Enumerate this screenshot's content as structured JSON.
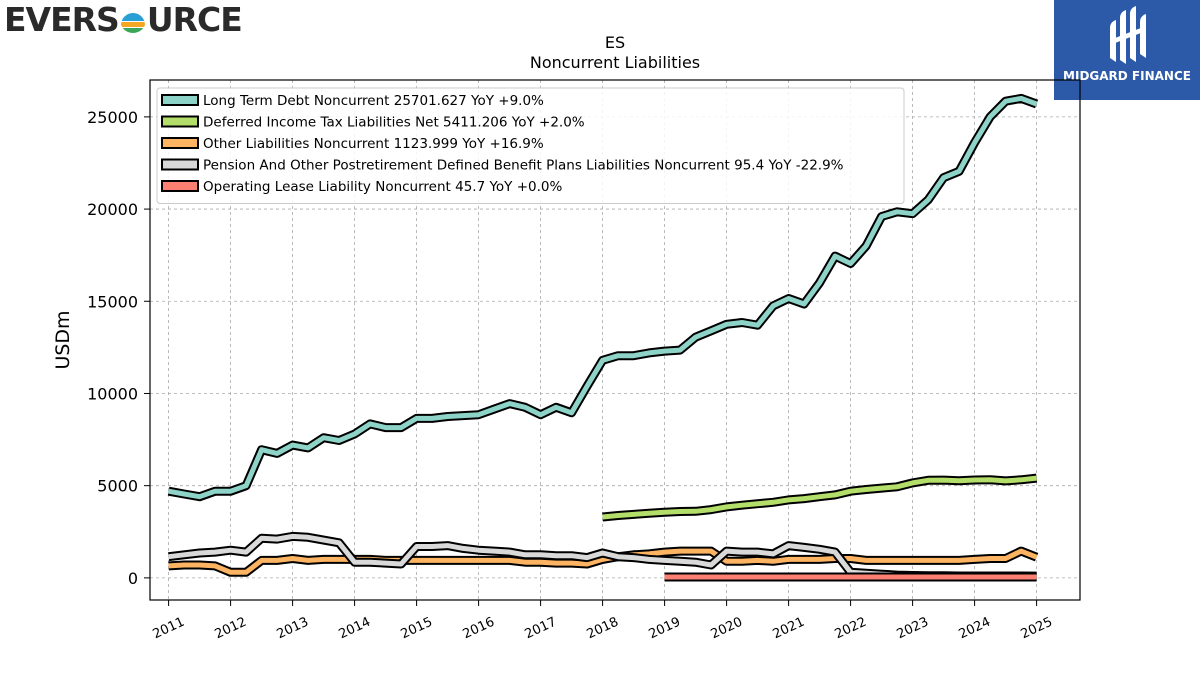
{
  "header": {
    "left_logo_text_a": "EVERS",
    "left_logo_text_b": "URCE",
    "right_logo_name": "MIDGARD FINANCE",
    "logo_colors": {
      "globe_top": "#2a9fd6",
      "globe_mid": "#f5a623",
      "globe_bottom": "#3aa657",
      "brand_blue": "#2c5aa8"
    }
  },
  "chart_data": {
    "type": "line",
    "title": "ES",
    "subtitle": "Noncurrent  Liabilities",
    "ylabel": "USDm",
    "xlabel": "",
    "ylim": [
      -1200,
      27000
    ],
    "xlim": [
      2010.7,
      2025.7
    ],
    "yticks": [
      0,
      5000,
      10000,
      15000,
      20000,
      25000
    ],
    "xticks": [
      2011,
      2012,
      2013,
      2014,
      2015,
      2016,
      2017,
      2018,
      2019,
      2020,
      2021,
      2022,
      2023,
      2024,
      2025
    ],
    "grid": true,
    "legend_position": "upper-left",
    "series": [
      {
        "name": "Long Term Debt Noncurrent  25701.627 YoY +9.0%",
        "color": "#8dd3c7",
        "x": [
          2011.0,
          2011.25,
          2011.5,
          2011.75,
          2012.0,
          2012.25,
          2012.5,
          2012.75,
          2013.0,
          2013.25,
          2013.5,
          2013.75,
          2014.0,
          2014.25,
          2014.5,
          2014.75,
          2015.0,
          2015.25,
          2015.5,
          2015.75,
          2016.0,
          2016.25,
          2016.5,
          2016.75,
          2017.0,
          2017.25,
          2017.5,
          2017.75,
          2018.0,
          2018.25,
          2018.5,
          2018.75,
          2019.0,
          2019.25,
          2019.5,
          2019.75,
          2020.0,
          2020.25,
          2020.5,
          2020.75,
          2021.0,
          2021.25,
          2021.5,
          2021.75,
          2022.0,
          2022.25,
          2022.5,
          2022.75,
          2023.0,
          2023.25,
          2023.5,
          2023.75,
          2024.0,
          2024.25,
          2024.5,
          2024.75,
          2025.0
        ],
        "values": [
          4700,
          4550,
          4400,
          4700,
          4700,
          5000,
          6950,
          6750,
          7200,
          7050,
          7600,
          7450,
          7800,
          8350,
          8150,
          8150,
          8650,
          8650,
          8750,
          8800,
          8850,
          9150,
          9450,
          9250,
          8850,
          9250,
          8950,
          10400,
          11800,
          12050,
          12050,
          12200,
          12300,
          12350,
          13050,
          13400,
          13750,
          13850,
          13700,
          14750,
          15150,
          14850,
          16000,
          17450,
          17050,
          18000,
          19600,
          19850,
          19750,
          20500,
          21700,
          22050,
          23600,
          25000,
          25850,
          26000,
          25700
        ]
      },
      {
        "name": "Deferred Income Tax Liabilities Net  5411.206 YoY +2.0%",
        "color": "#b3de69",
        "x": [
          2018.0,
          2018.25,
          2018.5,
          2018.75,
          2019.0,
          2019.25,
          2019.5,
          2019.75,
          2020.0,
          2020.25,
          2020.5,
          2020.75,
          2021.0,
          2021.25,
          2021.5,
          2021.75,
          2022.0,
          2022.25,
          2022.5,
          2022.75,
          2023.0,
          2023.25,
          2023.5,
          2023.75,
          2024.0,
          2024.25,
          2024.5,
          2024.75,
          2025.0
        ],
        "values": [
          3300,
          3380,
          3440,
          3500,
          3560,
          3600,
          3610,
          3700,
          3850,
          3940,
          4020,
          4100,
          4230,
          4300,
          4400,
          4500,
          4700,
          4790,
          4870,
          4940,
          5150,
          5290,
          5300,
          5270,
          5310,
          5320,
          5260,
          5320,
          5410
        ]
      },
      {
        "name": "Other Liabilities Noncurrent  1123.999 YoY +16.9%",
        "color": "#fdb462",
        "x": [
          2011.0,
          2011.25,
          2011.5,
          2011.75,
          2012.0,
          2012.25,
          2012.5,
          2012.75,
          2013.0,
          2013.25,
          2013.5,
          2013.75,
          2014.0,
          2014.25,
          2014.5,
          2014.75,
          2015.0,
          2015.25,
          2015.5,
          2015.75,
          2016.0,
          2016.25,
          2016.5,
          2016.75,
          2017.0,
          2017.25,
          2017.5,
          2017.75,
          2018.0,
          2018.25,
          2018.5,
          2018.75,
          2019.0,
          2019.25,
          2019.5,
          2019.75,
          2020.0,
          2020.25,
          2020.5,
          2020.75,
          2021.0,
          2021.25,
          2021.5,
          2021.75,
          2022.0,
          2022.25,
          2022.5,
          2022.75,
          2023.0,
          2023.25,
          2023.5,
          2023.75,
          2024.0,
          2024.25,
          2024.5,
          2024.75,
          2025.0
        ],
        "values": [
          650,
          700,
          700,
          650,
          300,
          300,
          950,
          950,
          1050,
          950,
          1000,
          1000,
          1000,
          1000,
          950,
          950,
          950,
          950,
          950,
          950,
          950,
          950,
          950,
          850,
          850,
          800,
          800,
          750,
          1000,
          1150,
          1250,
          1300,
          1400,
          1450,
          1450,
          1450,
          900,
          900,
          950,
          900,
          1000,
          1000,
          1000,
          1050,
          1050,
          950,
          950,
          950,
          950,
          950,
          950,
          950,
          1000,
          1050,
          1050,
          1450,
          1120
        ]
      },
      {
        "name": "Pension And Other Postretirement Defined Benefit Plans Liabilities Noncurrent  95.4 YoY -22.9%",
        "color": "#d9d9d9",
        "x": [
          2011.0,
          2011.25,
          2011.5,
          2011.75,
          2012.0,
          2012.25,
          2012.5,
          2012.75,
          2013.0,
          2013.25,
          2013.5,
          2013.75,
          2014.0,
          2014.25,
          2014.5,
          2014.75,
          2015.0,
          2015.25,
          2015.5,
          2015.75,
          2016.0,
          2016.25,
          2016.5,
          2016.75,
          2017.0,
          2017.25,
          2017.5,
          2017.75,
          2018.0,
          2018.25,
          2018.5,
          2018.75,
          2019.0,
          2019.25,
          2019.5,
          2019.75,
          2020.0,
          2020.25,
          2020.5,
          2020.75,
          2021.0,
          2021.25,
          2021.5,
          2021.75,
          2022.0,
          2022.25,
          2022.5,
          2022.75,
          2023.0,
          2023.25,
          2023.5,
          2023.75,
          2024.0,
          2024.25,
          2024.5,
          2024.75,
          2025.0
        ],
        "values": [
          1150,
          1250,
          1350,
          1400,
          1500,
          1400,
          2150,
          2100,
          2250,
          2200,
          2050,
          1900,
          850,
          850,
          800,
          750,
          1700,
          1700,
          1750,
          1600,
          1500,
          1450,
          1400,
          1250,
          1250,
          1200,
          1200,
          1100,
          1350,
          1150,
          1100,
          1000,
          950,
          900,
          850,
          700,
          1450,
          1400,
          1400,
          1300,
          1750,
          1650,
          1550,
          1400,
          300,
          250,
          200,
          150,
          130,
          120,
          110,
          100,
          100,
          100,
          100,
          100,
          95
        ]
      },
      {
        "name": "Operating Lease Liability Noncurrent  45.7 YoY +0.0%",
        "color": "#fb8072",
        "x": [
          2019.0,
          2025.0
        ],
        "values": [
          45.7,
          45.7
        ]
      }
    ]
  }
}
